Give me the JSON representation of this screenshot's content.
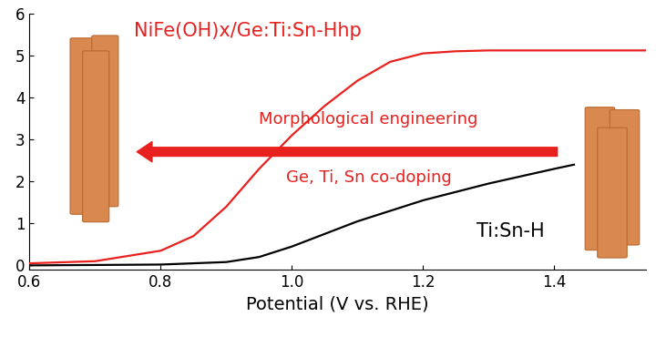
{
  "chart_data": {
    "type": "line",
    "x_label": "Potential (V vs. RHE)",
    "xlim": [
      0.6,
      1.54
    ],
    "xticks": [
      0.6,
      0.8,
      {
        "value": 1.0,
        "label": "1.0"
      },
      1.2,
      1.4
    ],
    "ylim": [
      -0.1,
      6
    ],
    "yticks": [
      0,
      1,
      2,
      3,
      4,
      5,
      6
    ],
    "grid": false,
    "annotations": [
      "Morphological engineering",
      "Ge, Ti, Sn co-doping"
    ],
    "series": [
      {
        "name": "NiFe(OH)x/Ge:Ti:Sn-Hhp",
        "color": "#e8201e",
        "x": [
          0.6,
          0.7,
          0.8,
          0.85,
          0.9,
          0.95,
          1.0,
          1.05,
          1.1,
          1.15,
          1.2,
          1.25,
          1.3,
          1.4,
          1.54
        ],
        "values": [
          0.05,
          0.1,
          0.35,
          0.7,
          1.4,
          2.3,
          3.1,
          3.8,
          4.4,
          4.85,
          5.05,
          5.1,
          5.12,
          5.12,
          5.12
        ]
      },
      {
        "name": "Ti:Sn-H",
        "color": "#000000",
        "x": [
          0.6,
          0.8,
          0.9,
          0.95,
          1.0,
          1.05,
          1.1,
          1.2,
          1.3,
          1.4,
          1.43
        ],
        "values": [
          0.0,
          0.02,
          0.08,
          0.2,
          0.45,
          0.75,
          1.05,
          1.55,
          1.95,
          2.3,
          2.4
        ]
      }
    ]
  }
}
